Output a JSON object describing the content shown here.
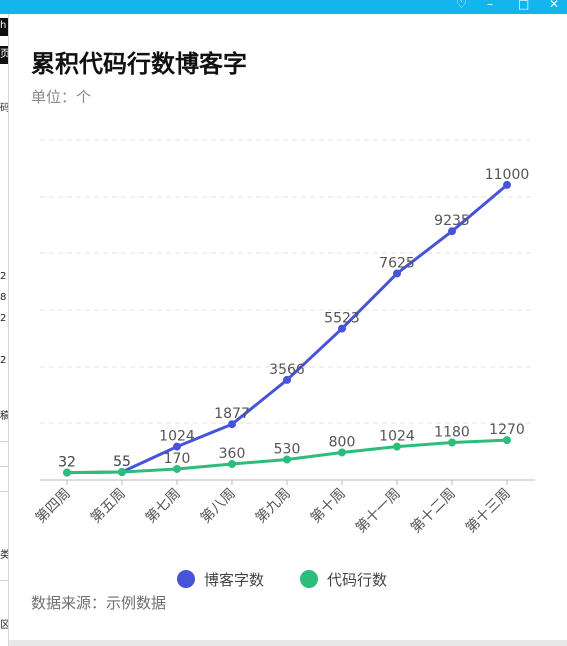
{
  "title": "累积代码行数博客字",
  "unit_label": "单位：个",
  "source_label": "数据来源：示例数据",
  "window_controls": [
    "♡",
    "–",
    "□",
    "✕"
  ],
  "left_fragments": [
    "h",
    "页",
    "码",
    "2",
    "8",
    "2",
    "2",
    "稿",
    "类",
    "区"
  ],
  "colors": {
    "titlebar": "#12b5ee",
    "blog_series": "#4753d9",
    "code_series": "#2dbd7a",
    "grid": "#e3e3e3",
    "axis": "#bbbbbb"
  },
  "chart_data": {
    "type": "line",
    "title": "累积代码行数博客字",
    "ylabel": "单位：个",
    "categories": [
      "第四周",
      "第五周",
      "第七周",
      "第八周",
      "第九周",
      "第十周",
      "第十一周",
      "第十二周",
      "第十三周"
    ],
    "series": [
      {
        "name": "博客字数",
        "color": "#4753d9",
        "values": [
          32,
          55,
          1024,
          1877,
          3566,
          5523,
          7625,
          9235,
          11000
        ]
      },
      {
        "name": "代码行数",
        "color": "#2dbd7a",
        "values": [
          32,
          55,
          170,
          360,
          530,
          800,
          1024,
          1180,
          1270
        ]
      }
    ],
    "ylim": [
      -250,
      12000
    ],
    "grid": true,
    "legend_position": "bottom-center"
  }
}
